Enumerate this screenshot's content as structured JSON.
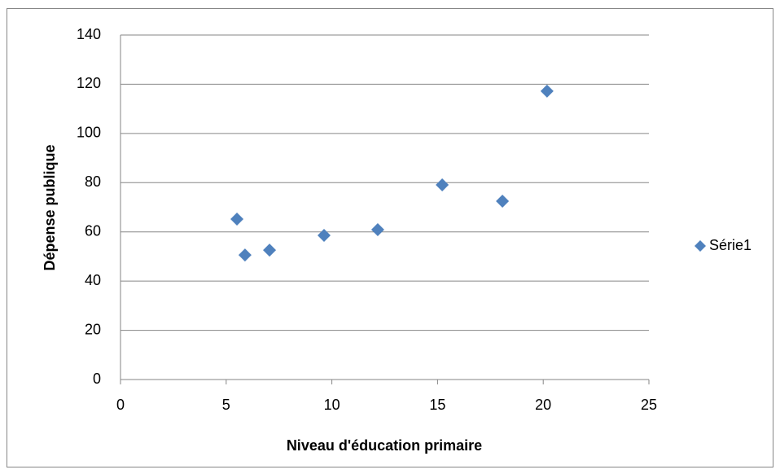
{
  "chart_data": {
    "type": "scatter",
    "x_label": "Niveau d'éducation primaire",
    "y_label": "Dépense publique",
    "series": [
      {
        "name": "Série1",
        "color": "#4f81bd",
        "x": [
          5.51,
          5.89,
          7.05,
          9.63,
          12.17,
          15.22,
          18.07,
          20.18
        ],
        "values": [
          65.2,
          50.6,
          52.6,
          58.6,
          60.9,
          79.1,
          72.5,
          117.2
        ]
      }
    ],
    "xlim": [
      0,
      25
    ],
    "xticks": [
      0,
      5,
      10,
      15,
      20,
      25
    ],
    "ylim": [
      0,
      140
    ],
    "yticks": [
      0,
      20,
      40,
      60,
      80,
      100,
      120,
      140
    ],
    "grid": true,
    "legend": "right"
  }
}
